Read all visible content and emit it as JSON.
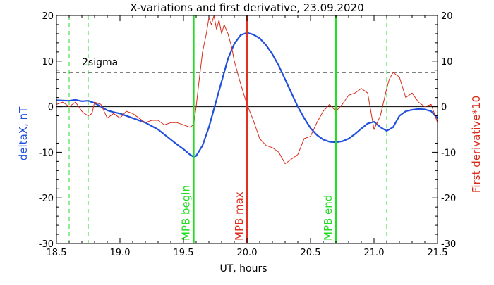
{
  "chart_data": {
    "type": "line",
    "title": "X-variations and first derivative, 23.09.2020",
    "xlabel": "UT, hours",
    "ylabel_left": "deltaX, nT",
    "ylabel_right": "First derivative*10",
    "xlim": [
      18.5,
      21.5
    ],
    "ylim_left": [
      -30,
      20
    ],
    "ylim_right": [
      -30,
      20
    ],
    "x_ticks": [
      "18.5",
      "19.0",
      "19.5",
      "20.0",
      "20.5",
      "21.0",
      "21.5"
    ],
    "y_ticks_left": [
      "-30",
      "-20",
      "-10",
      "0",
      "10",
      "20"
    ],
    "y_ticks_right": [
      "-30",
      "-20",
      "-10",
      "0",
      "10",
      "20"
    ],
    "sigma_level": 7.5,
    "sigma_label": "2sigma",
    "zero_line": 0,
    "colors": {
      "deltaX": "#1f4fdc",
      "derivative": "#d92b1a",
      "mpb": "#22dd22",
      "max": "#e0301e",
      "axis": "#000000"
    },
    "vlines": [
      {
        "x": 19.58,
        "label": "MPB begin",
        "color": "#22dd22",
        "style": "solid"
      },
      {
        "x": 20.0,
        "label": "MPB max",
        "color": "#e0301e",
        "style": "solid"
      },
      {
        "x": 20.7,
        "label": "MPB end",
        "color": "#22dd22",
        "style": "solid"
      },
      {
        "x": 18.6,
        "label": "",
        "color": "#22dd22",
        "style": "dashed"
      },
      {
        "x": 18.75,
        "label": "",
        "color": "#22dd22",
        "style": "dashed"
      },
      {
        "x": 21.1,
        "label": "",
        "color": "#22dd22",
        "style": "dashed"
      }
    ],
    "series": [
      {
        "name": "deltaX",
        "axis": "left",
        "x": [
          18.5,
          18.6,
          18.65,
          18.7,
          18.75,
          18.8,
          18.85,
          18.9,
          18.95,
          19.0,
          19.1,
          19.2,
          19.3,
          19.4,
          19.45,
          19.5,
          19.55,
          19.58,
          19.6,
          19.65,
          19.7,
          19.75,
          19.8,
          19.85,
          19.9,
          19.95,
          20.0,
          20.05,
          20.1,
          20.15,
          20.2,
          20.25,
          20.3,
          20.35,
          20.4,
          20.45,
          20.5,
          20.55,
          20.6,
          20.65,
          20.7,
          20.75,
          20.8,
          20.85,
          20.9,
          20.95,
          21.0,
          21.05,
          21.1,
          21.15,
          21.2,
          21.25,
          21.3,
          21.35,
          21.4,
          21.45,
          21.5
        ],
        "y": [
          1.4,
          1.3,
          1.5,
          1.2,
          1.3,
          0.8,
          0.0,
          -0.8,
          -1.2,
          -1.5,
          -2.5,
          -3.5,
          -5.0,
          -7.2,
          -8.3,
          -9.3,
          -10.5,
          -11.0,
          -10.8,
          -8.5,
          -4.5,
          0.5,
          5.5,
          10.5,
          13.8,
          15.7,
          16.2,
          15.8,
          15.0,
          13.5,
          11.5,
          9.0,
          6.0,
          3.0,
          0.0,
          -2.5,
          -4.7,
          -6.2,
          -7.2,
          -7.7,
          -7.8,
          -7.6,
          -7.0,
          -6.0,
          -4.8,
          -3.7,
          -3.3,
          -4.5,
          -5.3,
          -4.5,
          -2.0,
          -1.0,
          -0.7,
          -0.5,
          -0.6,
          -1.0,
          -2.6
        ]
      },
      {
        "name": "First derivative*10",
        "axis": "right",
        "x": [
          18.5,
          18.55,
          18.6,
          18.65,
          18.7,
          18.72,
          18.75,
          18.78,
          18.8,
          18.85,
          18.9,
          18.95,
          19.0,
          19.05,
          19.1,
          19.15,
          19.2,
          19.25,
          19.3,
          19.35,
          19.4,
          19.45,
          19.5,
          19.55,
          19.58,
          19.6,
          19.62,
          19.65,
          19.68,
          19.7,
          19.72,
          19.74,
          19.76,
          19.78,
          19.8,
          19.82,
          19.85,
          19.88,
          19.9,
          19.95,
          20.0,
          20.05,
          20.1,
          20.15,
          20.2,
          20.25,
          20.3,
          20.35,
          20.4,
          20.45,
          20.5,
          20.55,
          20.6,
          20.65,
          20.7,
          20.75,
          20.8,
          20.85,
          20.9,
          20.95,
          21.0,
          21.05,
          21.1,
          21.12,
          21.15,
          21.2,
          21.25,
          21.3,
          21.35,
          21.4,
          21.45,
          21.5
        ],
        "y": [
          0.5,
          1.0,
          0.0,
          1.0,
          -1.0,
          -1.5,
          -2.0,
          -1.5,
          1.0,
          0.5,
          -2.5,
          -1.5,
          -2.5,
          -1.0,
          -1.5,
          -2.5,
          -3.5,
          -3.0,
          -3.0,
          -4.0,
          -3.5,
          -3.5,
          -4.0,
          -4.5,
          -4.0,
          0.0,
          5.0,
          12.0,
          16.0,
          19.5,
          18.0,
          20.0,
          17.0,
          19.0,
          16.0,
          18.0,
          16.0,
          13.0,
          10.0,
          5.0,
          0.5,
          -3.0,
          -7.0,
          -8.5,
          -9.0,
          -10.0,
          -12.5,
          -11.5,
          -10.5,
          -7.0,
          -6.5,
          -3.5,
          -1.0,
          0.5,
          -1.0,
          0.5,
          2.5,
          3.0,
          4.0,
          3.0,
          -5.0,
          -2.0,
          4.0,
          6.0,
          7.5,
          6.5,
          2.0,
          3.0,
          1.0,
          0.0,
          0.5,
          -3.5
        ]
      }
    ]
  }
}
